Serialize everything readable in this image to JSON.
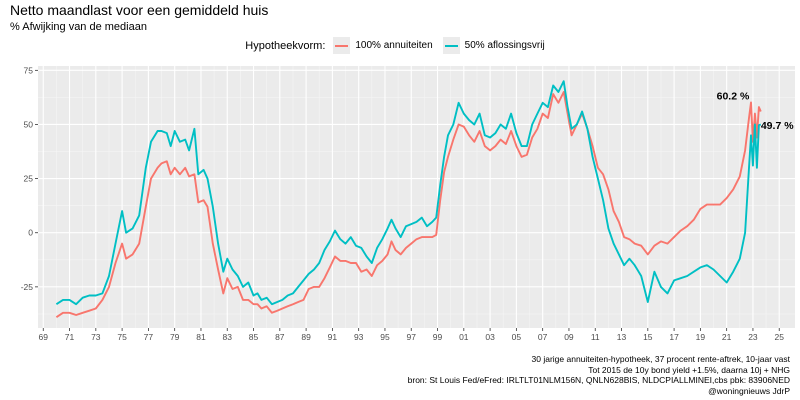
{
  "header": {
    "title": "Netto maandlast voor een gemiddeld huis",
    "subtitle": "% Afwijking van de mediaan"
  },
  "legend": {
    "title": "Hypotheekvorm:",
    "items": [
      {
        "label": "100% annuiteiten",
        "color": "#f8766d"
      },
      {
        "label": "50% aflossingsvrij",
        "color": "#00bfc4"
      }
    ]
  },
  "caption": [
    "30 jarige annuiteiten-hypotheek, 37 procent rente-aftrek, 10-jaar vast",
    "Tot 2015 de 10y bond yield +1.5%, daarna 10j + NHG",
    "bron: St Louis Fed/eFred: IRLTLT01NLM156N, QNLN628BIS, NLDCPIALLMINEI,cbs pbk: 83906NED",
    "@woningnieuws JdrP"
  ],
  "chart_data": {
    "type": "line",
    "xlim": [
      1968.6,
      2026.2
    ],
    "ylim": [
      -44,
      77
    ],
    "grid": true,
    "legend_position": "top",
    "x_ticks": [
      {
        "value": 1969,
        "label": "69"
      },
      {
        "value": 1971,
        "label": "71"
      },
      {
        "value": 1973,
        "label": "73"
      },
      {
        "value": 1975,
        "label": "75"
      },
      {
        "value": 1977,
        "label": "77"
      },
      {
        "value": 1979,
        "label": "79"
      },
      {
        "value": 1981,
        "label": "81"
      },
      {
        "value": 1983,
        "label": "83"
      },
      {
        "value": 1985,
        "label": "85"
      },
      {
        "value": 1987,
        "label": "87"
      },
      {
        "value": 1989,
        "label": "89"
      },
      {
        "value": 1991,
        "label": "91"
      },
      {
        "value": 1993,
        "label": "93"
      },
      {
        "value": 1995,
        "label": "95"
      },
      {
        "value": 1997,
        "label": "97"
      },
      {
        "value": 1999,
        "label": "99"
      },
      {
        "value": 2001,
        "label": "01"
      },
      {
        "value": 2003,
        "label": "03"
      },
      {
        "value": 2005,
        "label": "05"
      },
      {
        "value": 2007,
        "label": "07"
      },
      {
        "value": 2009,
        "label": "09"
      },
      {
        "value": 2011,
        "label": "11"
      },
      {
        "value": 2013,
        "label": "13"
      },
      {
        "value": 2015,
        "label": "15"
      },
      {
        "value": 2017,
        "label": "17"
      },
      {
        "value": 2019,
        "label": "19"
      },
      {
        "value": 2021,
        "label": "21"
      },
      {
        "value": 2023,
        "label": "23"
      },
      {
        "value": 2025,
        "label": "25"
      }
    ],
    "y_ticks": [
      {
        "value": -25,
        "label": "-25"
      },
      {
        "value": 0,
        "label": "0"
      },
      {
        "value": 25,
        "label": "25"
      },
      {
        "value": 50,
        "label": "50"
      },
      {
        "value": 75,
        "label": "75"
      }
    ],
    "series": [
      {
        "name": "100% annuiteiten",
        "color": "#f8766d",
        "points": [
          [
            1970.0,
            -39
          ],
          [
            1970.5,
            -37
          ],
          [
            1971.0,
            -37
          ],
          [
            1971.5,
            -38
          ],
          [
            1972.0,
            -37
          ],
          [
            1972.5,
            -36
          ],
          [
            1973.0,
            -35
          ],
          [
            1973.5,
            -31
          ],
          [
            1974.0,
            -25
          ],
          [
            1974.5,
            -14
          ],
          [
            1975.0,
            -5
          ],
          [
            1975.3,
            -12
          ],
          [
            1975.8,
            -10
          ],
          [
            1976.3,
            -5
          ],
          [
            1976.8,
            12
          ],
          [
            1977.2,
            25
          ],
          [
            1977.7,
            30
          ],
          [
            1978.0,
            32
          ],
          [
            1978.4,
            33
          ],
          [
            1978.7,
            27
          ],
          [
            1979.0,
            30
          ],
          [
            1979.4,
            27
          ],
          [
            1979.8,
            30
          ],
          [
            1980.1,
            26
          ],
          [
            1980.5,
            27
          ],
          [
            1980.8,
            14
          ],
          [
            1981.2,
            15
          ],
          [
            1981.5,
            12
          ],
          [
            1981.9,
            -5
          ],
          [
            1982.3,
            -17
          ],
          [
            1982.7,
            -28
          ],
          [
            1983.0,
            -21
          ],
          [
            1983.4,
            -26
          ],
          [
            1983.8,
            -25
          ],
          [
            1984.2,
            -31
          ],
          [
            1984.6,
            -31
          ],
          [
            1985.0,
            -33
          ],
          [
            1985.3,
            -33
          ],
          [
            1985.6,
            -35
          ],
          [
            1986.0,
            -34
          ],
          [
            1986.4,
            -37
          ],
          [
            1986.8,
            -36
          ],
          [
            1987.2,
            -35
          ],
          [
            1987.6,
            -34
          ],
          [
            1988.0,
            -33
          ],
          [
            1988.4,
            -32
          ],
          [
            1988.8,
            -31
          ],
          [
            1989.2,
            -26
          ],
          [
            1989.6,
            -25
          ],
          [
            1990.0,
            -25
          ],
          [
            1990.4,
            -21
          ],
          [
            1990.8,
            -16
          ],
          [
            1991.2,
            -11
          ],
          [
            1991.6,
            -13
          ],
          [
            1992.0,
            -13
          ],
          [
            1992.4,
            -14
          ],
          [
            1992.8,
            -14
          ],
          [
            1993.2,
            -18
          ],
          [
            1993.6,
            -17
          ],
          [
            1994.0,
            -20
          ],
          [
            1994.4,
            -15
          ],
          [
            1994.8,
            -13
          ],
          [
            1995.2,
            -10
          ],
          [
            1995.5,
            -4
          ],
          [
            1995.8,
            -8
          ],
          [
            1996.2,
            -10
          ],
          [
            1996.6,
            -7
          ],
          [
            1997.0,
            -5
          ],
          [
            1997.4,
            -3
          ],
          [
            1997.8,
            -2
          ],
          [
            1998.2,
            -2
          ],
          [
            1998.6,
            -2
          ],
          [
            1998.9,
            -1
          ],
          [
            1999.2,
            15
          ],
          [
            1999.5,
            28
          ],
          [
            1999.8,
            35
          ],
          [
            2000.2,
            43
          ],
          [
            2000.6,
            50
          ],
          [
            2001.0,
            49
          ],
          [
            2001.4,
            45
          ],
          [
            2001.8,
            42
          ],
          [
            2002.2,
            47
          ],
          [
            2002.6,
            40
          ],
          [
            2003.0,
            38
          ],
          [
            2003.4,
            40
          ],
          [
            2003.8,
            43
          ],
          [
            2004.2,
            41
          ],
          [
            2004.6,
            47
          ],
          [
            2005.0,
            40
          ],
          [
            2005.4,
            35
          ],
          [
            2005.8,
            36
          ],
          [
            2006.2,
            44
          ],
          [
            2006.6,
            48
          ],
          [
            2007.0,
            55
          ],
          [
            2007.4,
            53
          ],
          [
            2007.8,
            64
          ],
          [
            2008.2,
            60
          ],
          [
            2008.6,
            65
          ],
          [
            2008.9,
            55
          ],
          [
            2009.2,
            45
          ],
          [
            2009.6,
            50
          ],
          [
            2010.0,
            55
          ],
          [
            2010.4,
            48
          ],
          [
            2010.8,
            40
          ],
          [
            2011.2,
            30
          ],
          [
            2011.6,
            27
          ],
          [
            2012.0,
            20
          ],
          [
            2012.4,
            10
          ],
          [
            2012.8,
            5
          ],
          [
            2013.2,
            -2
          ],
          [
            2013.6,
            -3
          ],
          [
            2014.0,
            -5
          ],
          [
            2014.5,
            -6
          ],
          [
            2015.0,
            -10
          ],
          [
            2015.5,
            -6
          ],
          [
            2016.0,
            -4
          ],
          [
            2016.5,
            -5
          ],
          [
            2017.0,
            -2
          ],
          [
            2017.5,
            1
          ],
          [
            2018.0,
            3
          ],
          [
            2018.5,
            6
          ],
          [
            2019.0,
            11
          ],
          [
            2019.5,
            13
          ],
          [
            2020.0,
            13
          ],
          [
            2020.5,
            13
          ],
          [
            2021.0,
            16
          ],
          [
            2021.5,
            20
          ],
          [
            2022.0,
            26
          ],
          [
            2022.4,
            38
          ],
          [
            2022.7,
            53
          ],
          [
            2022.85,
            60.2
          ],
          [
            2023.0,
            42
          ],
          [
            2023.15,
            55
          ],
          [
            2023.3,
            44
          ],
          [
            2023.45,
            58
          ],
          [
            2023.6,
            56
          ]
        ]
      },
      {
        "name": "50% aflossingsvrij",
        "color": "#00bfc4",
        "points": [
          [
            1970.0,
            -33
          ],
          [
            1970.5,
            -31
          ],
          [
            1971.0,
            -31
          ],
          [
            1971.5,
            -33
          ],
          [
            1972.0,
            -30
          ],
          [
            1972.5,
            -29
          ],
          [
            1973.0,
            -29
          ],
          [
            1973.5,
            -28
          ],
          [
            1974.0,
            -20
          ],
          [
            1974.5,
            -5
          ],
          [
            1975.0,
            10
          ],
          [
            1975.3,
            0
          ],
          [
            1975.8,
            2
          ],
          [
            1976.3,
            8
          ],
          [
            1976.8,
            30
          ],
          [
            1977.2,
            42
          ],
          [
            1977.7,
            47
          ],
          [
            1978.0,
            47
          ],
          [
            1978.4,
            46
          ],
          [
            1978.7,
            40
          ],
          [
            1979.0,
            47
          ],
          [
            1979.4,
            42
          ],
          [
            1979.8,
            43
          ],
          [
            1980.1,
            38
          ],
          [
            1980.5,
            48
          ],
          [
            1980.8,
            27
          ],
          [
            1981.2,
            29
          ],
          [
            1981.5,
            25
          ],
          [
            1981.9,
            12
          ],
          [
            1982.3,
            -5
          ],
          [
            1982.7,
            -18
          ],
          [
            1983.0,
            -12
          ],
          [
            1983.4,
            -17
          ],
          [
            1983.8,
            -20
          ],
          [
            1984.2,
            -25
          ],
          [
            1984.6,
            -23
          ],
          [
            1985.0,
            -29
          ],
          [
            1985.3,
            -28
          ],
          [
            1985.6,
            -31
          ],
          [
            1986.0,
            -30
          ],
          [
            1986.4,
            -33
          ],
          [
            1986.8,
            -32
          ],
          [
            1987.2,
            -31
          ],
          [
            1987.6,
            -29
          ],
          [
            1988.0,
            -28
          ],
          [
            1988.4,
            -25
          ],
          [
            1988.8,
            -22
          ],
          [
            1989.2,
            -19
          ],
          [
            1989.6,
            -17
          ],
          [
            1990.0,
            -14
          ],
          [
            1990.4,
            -8
          ],
          [
            1990.8,
            -4
          ],
          [
            1991.2,
            1
          ],
          [
            1991.6,
            -3
          ],
          [
            1992.0,
            -5
          ],
          [
            1992.4,
            -2
          ],
          [
            1992.8,
            -6
          ],
          [
            1993.2,
            -7
          ],
          [
            1993.6,
            -11
          ],
          [
            1994.0,
            -14
          ],
          [
            1994.4,
            -7
          ],
          [
            1994.8,
            -3
          ],
          [
            1995.2,
            2
          ],
          [
            1995.5,
            6
          ],
          [
            1995.8,
            2
          ],
          [
            1996.2,
            -2
          ],
          [
            1996.6,
            3
          ],
          [
            1997.0,
            4
          ],
          [
            1997.4,
            5
          ],
          [
            1997.8,
            7
          ],
          [
            1998.2,
            3
          ],
          [
            1998.6,
            5
          ],
          [
            1998.9,
            7
          ],
          [
            1999.2,
            22
          ],
          [
            1999.5,
            35
          ],
          [
            1999.8,
            45
          ],
          [
            2000.2,
            50
          ],
          [
            2000.6,
            60
          ],
          [
            2001.0,
            55
          ],
          [
            2001.4,
            52
          ],
          [
            2001.8,
            50
          ],
          [
            2002.2,
            55
          ],
          [
            2002.6,
            45
          ],
          [
            2003.0,
            44
          ],
          [
            2003.4,
            46
          ],
          [
            2003.8,
            50
          ],
          [
            2004.2,
            48
          ],
          [
            2004.6,
            55
          ],
          [
            2005.0,
            46
          ],
          [
            2005.4,
            40
          ],
          [
            2005.8,
            40
          ],
          [
            2006.2,
            50
          ],
          [
            2006.6,
            55
          ],
          [
            2007.0,
            60
          ],
          [
            2007.4,
            58
          ],
          [
            2007.8,
            68
          ],
          [
            2008.2,
            65
          ],
          [
            2008.6,
            70
          ],
          [
            2008.9,
            58
          ],
          [
            2009.2,
            48
          ],
          [
            2009.6,
            50
          ],
          [
            2010.0,
            56
          ],
          [
            2010.4,
            48
          ],
          [
            2010.8,
            35
          ],
          [
            2011.2,
            25
          ],
          [
            2011.6,
            15
          ],
          [
            2012.0,
            2
          ],
          [
            2012.4,
            -5
          ],
          [
            2012.8,
            -10
          ],
          [
            2013.2,
            -15
          ],
          [
            2013.6,
            -12
          ],
          [
            2014.0,
            -15
          ],
          [
            2014.5,
            -20
          ],
          [
            2015.0,
            -32
          ],
          [
            2015.5,
            -18
          ],
          [
            2016.0,
            -25
          ],
          [
            2016.5,
            -28
          ],
          [
            2017.0,
            -22
          ],
          [
            2017.5,
            -21
          ],
          [
            2018.0,
            -20
          ],
          [
            2018.5,
            -18
          ],
          [
            2019.0,
            -16
          ],
          [
            2019.5,
            -15
          ],
          [
            2020.0,
            -17
          ],
          [
            2020.5,
            -20
          ],
          [
            2021.0,
            -23
          ],
          [
            2021.5,
            -18
          ],
          [
            2022.0,
            -12
          ],
          [
            2022.4,
            0
          ],
          [
            2022.7,
            30
          ],
          [
            2022.85,
            45
          ],
          [
            2023.0,
            31
          ],
          [
            2023.15,
            50
          ],
          [
            2023.3,
            30
          ],
          [
            2023.45,
            49.7
          ],
          [
            2023.6,
            50
          ]
        ]
      }
    ],
    "annotations": [
      {
        "text": "60.2 %",
        "x": 2022.85,
        "y": 60.2
      },
      {
        "text": "49.7 %",
        "x": 2023.45,
        "y": 49.7
      }
    ]
  }
}
